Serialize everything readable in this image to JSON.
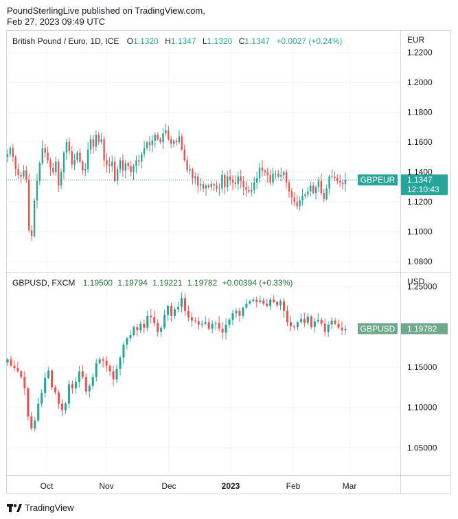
{
  "publisher": {
    "line1": "PoundSterlingLive published on TradingView.com,",
    "line2": "Feb 27, 2023 09:49 UTC"
  },
  "footer": {
    "brand": "TradingView",
    "logo_icon": "tradingview-logo-icon"
  },
  "colors": {
    "up": "#26a69a",
    "down": "#ef5350",
    "grid": "#f0f3fa",
    "eur_badge": "#26a69a",
    "usd_badge": "#6fa98b"
  },
  "chart_data": [
    {
      "type": "candlestick",
      "symbol": "British Pound / Euro, 1D, ICE",
      "ohlc_labels": {
        "o": "O",
        "h": "H",
        "l": "L",
        "c": "C",
        "open": "1.1320",
        "high": "1.1347",
        "low": "1.1320",
        "close": "1.1347",
        "change": "+0.0027 (+0.24%)"
      },
      "currency": "EUR",
      "y_ticks": [
        "1.2200",
        "1.2000",
        "1.1800",
        "1.1600",
        "1.1400",
        "1.1200",
        "1.1000",
        "1.0800"
      ],
      "ylim": [
        1.075,
        1.224
      ],
      "last_badge": {
        "name": "GBPEUR",
        "price": "1.1347",
        "countdown": "12:10:43"
      },
      "closes": [
        1.152,
        1.156,
        1.15,
        1.142,
        1.138,
        1.137,
        1.141,
        1.135,
        1.101,
        1.097,
        1.121,
        1.134,
        1.146,
        1.156,
        1.153,
        1.148,
        1.143,
        1.14,
        1.147,
        1.131,
        1.14,
        1.153,
        1.16,
        1.154,
        1.145,
        1.148,
        1.153,
        1.147,
        1.141,
        1.142,
        1.155,
        1.162,
        1.157,
        1.165,
        1.16,
        1.162,
        1.148,
        1.145,
        1.144,
        1.147,
        1.134,
        1.142,
        1.148,
        1.141,
        1.146,
        1.144,
        1.14,
        1.144,
        1.148,
        1.147,
        1.152,
        1.156,
        1.16,
        1.158,
        1.161,
        1.165,
        1.162,
        1.16,
        1.166,
        1.168,
        1.162,
        1.159,
        1.161,
        1.16,
        1.164,
        1.155,
        1.148,
        1.141,
        1.142,
        1.136,
        1.137,
        1.131,
        1.132,
        1.129,
        1.131,
        1.13,
        1.132,
        1.131,
        1.129,
        1.129,
        1.138,
        1.13,
        1.137,
        1.135,
        1.133,
        1.132,
        1.137,
        1.134,
        1.13,
        1.128,
        1.127,
        1.128,
        1.133,
        1.136,
        1.143,
        1.141,
        1.14,
        1.138,
        1.133,
        1.139,
        1.139,
        1.137,
        1.138,
        1.14,
        1.133,
        1.127,
        1.123,
        1.12,
        1.117,
        1.121,
        1.124,
        1.125,
        1.127,
        1.131,
        1.126,
        1.13,
        1.134,
        1.126,
        1.122,
        1.129,
        1.137,
        1.137,
        1.136,
        1.134,
        1.133,
        1.132,
        1.1347
      ]
    },
    {
      "type": "candlestick",
      "symbol": "GBPUSD, FXCM",
      "ohlc": {
        "open": "1.19500",
        "high": "1.19794",
        "low": "1.19221",
        "close": "1.19782",
        "change": "+0.00394 (+0.33%)"
      },
      "currency": "USD",
      "y_ticks": [
        "1.25000",
        "1.15000",
        "1.10000",
        "1.05000"
      ],
      "ylim": [
        1.018,
        1.248
      ],
      "last_badge": {
        "name": "GBPUSD",
        "price": "1.19782"
      },
      "closes": [
        1.16,
        1.152,
        1.149,
        1.145,
        1.138,
        1.124,
        1.089,
        1.074,
        1.084,
        1.105,
        1.118,
        1.137,
        1.146,
        1.125,
        1.119,
        1.105,
        1.097,
        1.105,
        1.129,
        1.124,
        1.132,
        1.145,
        1.138,
        1.12,
        1.127,
        1.138,
        1.155,
        1.16,
        1.158,
        1.152,
        1.145,
        1.135,
        1.148,
        1.162,
        1.178,
        1.186,
        1.19,
        1.2,
        1.196,
        1.204,
        1.199,
        1.214,
        1.212,
        1.205,
        1.194,
        1.199,
        1.215,
        1.226,
        1.214,
        1.222,
        1.225,
        1.236,
        1.22,
        1.212,
        1.208,
        1.207,
        1.203,
        1.204,
        1.206,
        1.198,
        1.204,
        1.205,
        1.198,
        1.193,
        1.203,
        1.209,
        1.217,
        1.22,
        1.214,
        1.224,
        1.229,
        1.232,
        1.234,
        1.231,
        1.233,
        1.229,
        1.226,
        1.234,
        1.231,
        1.227,
        1.232,
        1.22,
        1.206,
        1.201,
        1.2,
        1.206,
        1.21,
        1.205,
        1.213,
        1.2,
        1.207,
        1.209,
        1.204,
        1.194,
        1.203,
        1.208,
        1.204,
        1.199,
        1.196,
        1.1978
      ]
    }
  ],
  "x_axis": {
    "ticks": [
      {
        "label": "Oct",
        "bold": false
      },
      {
        "label": "Nov",
        "bold": false
      },
      {
        "label": "Dec",
        "bold": false
      },
      {
        "label": "2023",
        "bold": true
      },
      {
        "label": "Feb",
        "bold": false
      },
      {
        "label": "Mar",
        "bold": false
      }
    ]
  }
}
